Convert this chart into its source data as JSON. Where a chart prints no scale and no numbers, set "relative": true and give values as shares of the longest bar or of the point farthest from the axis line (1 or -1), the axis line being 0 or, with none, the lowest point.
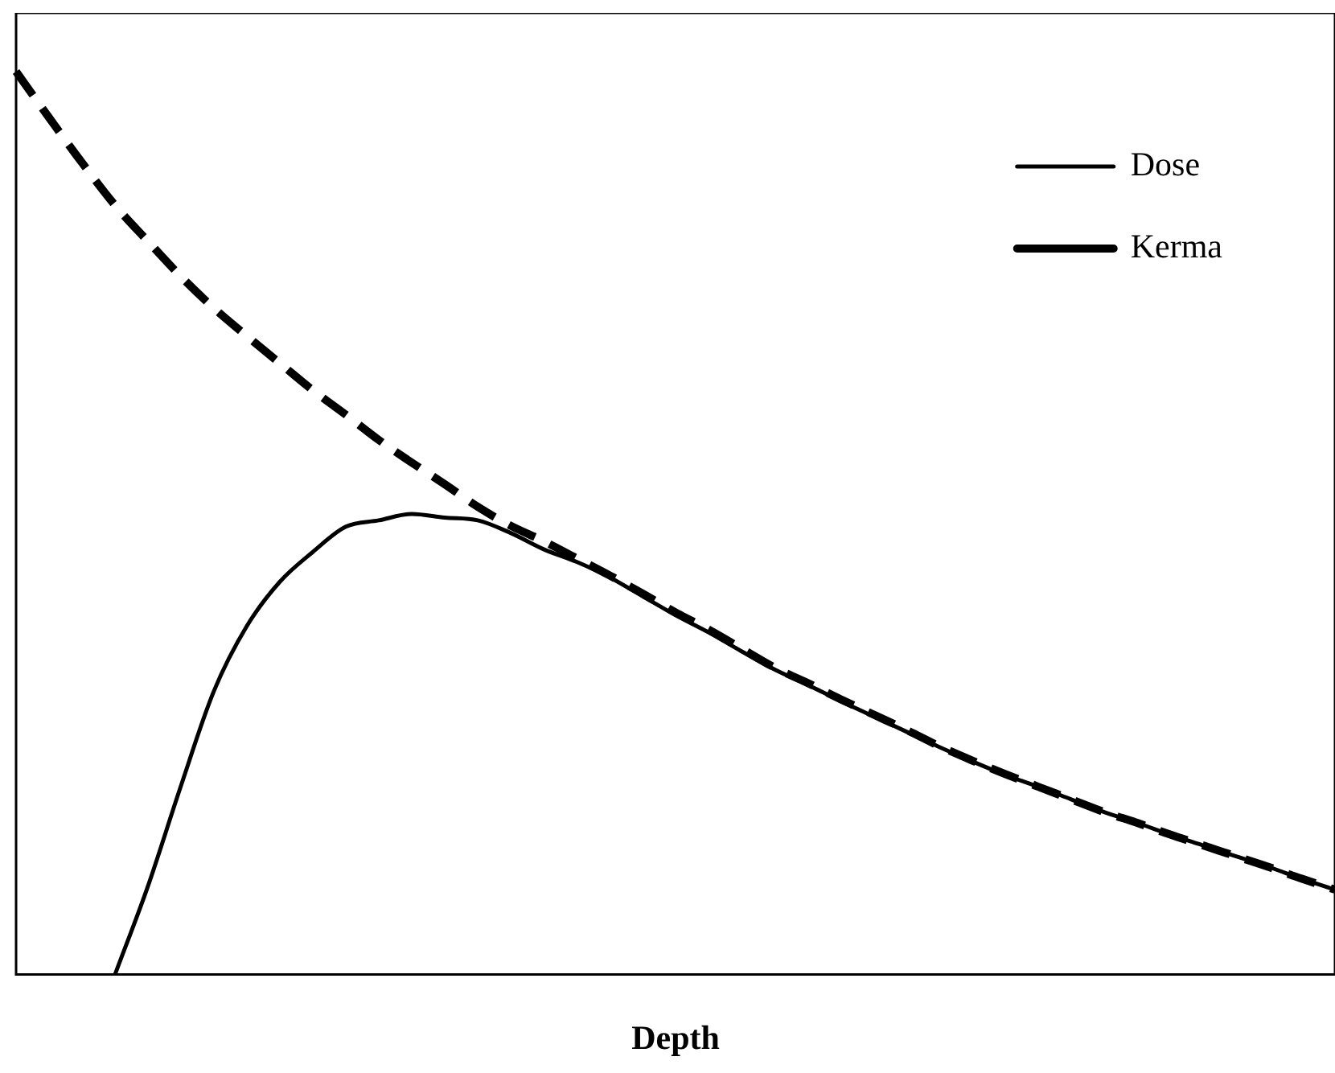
{
  "chart_data": {
    "type": "line",
    "xlabel": "Depth",
    "relative": true,
    "tick_labels": false,
    "legend": "top right",
    "marker": "none",
    "categories": [
      null,
      null,
      null,
      null,
      null,
      null,
      null,
      null,
      null,
      null,
      null,
      null,
      null,
      null,
      null,
      null,
      null,
      null,
      null,
      null,
      null,
      null,
      null,
      null,
      null,
      null,
      null,
      null,
      null,
      null,
      null,
      null,
      null,
      null,
      null,
      null,
      null,
      null,
      null,
      null,
      null
    ],
    "series": [
      {
        "name": "Dose",
        "color": "#000000",
        "line_style": "solid",
        "values": [
          null,
          null,
          null,
          0,
          0.098,
          0.209,
          0.314,
          0.386,
          0.435,
          0.468,
          0.496,
          0.503,
          0.51,
          0.506,
          0.503,
          0.489,
          0.471,
          0.457,
          0.44,
          0.419,
          0.398,
          0.379,
          0.358,
          0.338,
          0.321,
          0.303,
          0.286,
          0.269,
          0.252,
          0.236,
          0.221,
          0.208,
          0.194,
          0.18,
          0.168,
          0.155,
          0.143,
          0.131,
          0.119,
          0.106,
          0.094
        ]
      },
      {
        "name": "Kerma",
        "color": "#000000",
        "line_style": "dashed",
        "values": [
          1,
          0.949,
          0.899,
          0.852,
          0.812,
          0.773,
          0.738,
          0.707,
          0.677,
          0.647,
          0.62,
          0.592,
          0.567,
          0.543,
          0.518,
          0.497,
          0.48,
          0.461,
          0.442,
          0.422,
          0.401,
          0.382,
          0.361,
          0.34,
          0.323,
          0.305,
          0.288,
          0.271,
          0.253,
          0.237,
          0.222,
          0.208,
          0.194,
          0.18,
          0.168,
          0.155,
          0.143,
          0.131,
          0.119,
          0.106,
          0.094
        ]
      }
    ]
  }
}
